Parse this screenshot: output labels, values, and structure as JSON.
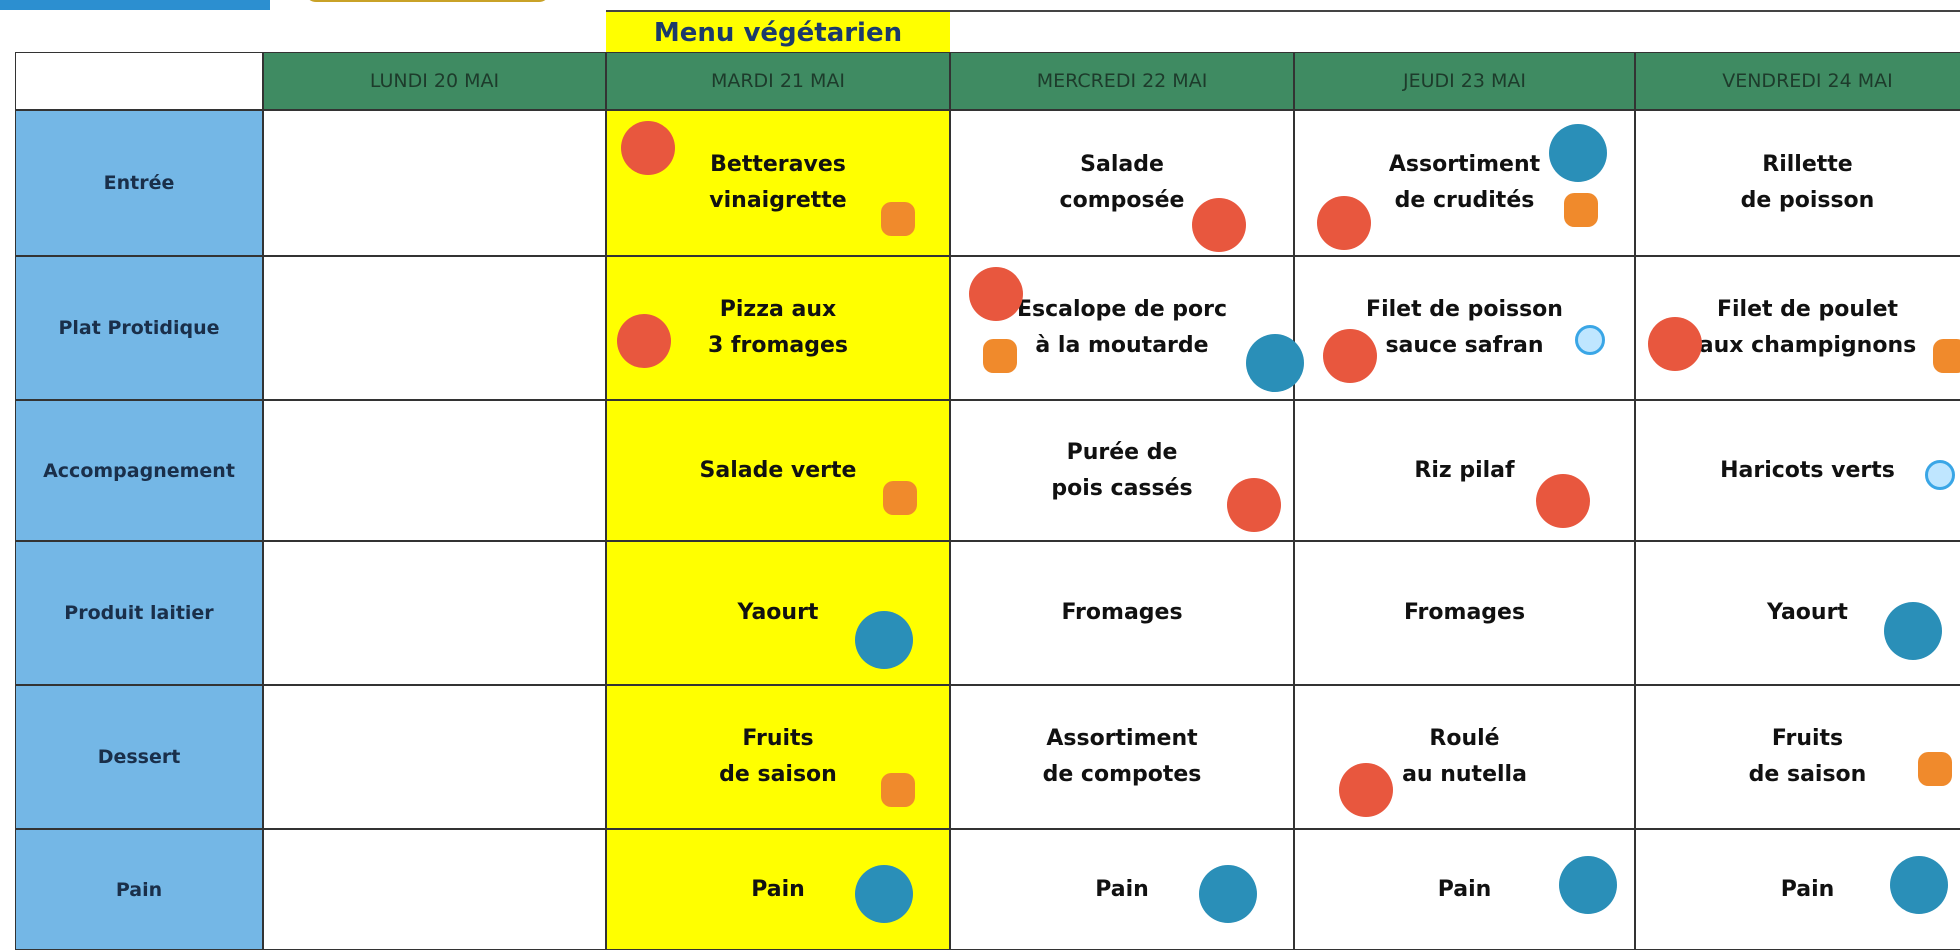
{
  "note": "Menu végétarien",
  "days": [
    "LUNDI 20 MAI",
    "MARDI 21 MAI",
    "MERCREDI 22 MAI",
    "JEUDI  23 MAI",
    "VENDREDI 24 MAI"
  ],
  "rows": [
    {
      "label": "Entrée",
      "cells": [
        [],
        [
          "Betteraves",
          "vinaigrette"
        ],
        [
          "Salade",
          "composée"
        ],
        [
          "Assortiment",
          "de crudités"
        ],
        [
          "Rillette",
          "de poisson"
        ]
      ]
    },
    {
      "label": "Plat Protidique",
      "cells": [
        [],
        [
          "Pizza aux",
          "3 fromages"
        ],
        [
          "Escalope de porc",
          "à la moutarde"
        ],
        [
          "Filet de poisson",
          "sauce safran"
        ],
        [
          "Filet de poulet",
          "aux champignons"
        ]
      ]
    },
    {
      "label": "Accompagnement",
      "cells": [
        [],
        [
          "Salade verte"
        ],
        [
          "Purée de",
          "pois cassés"
        ],
        [
          "Riz pilaf"
        ],
        [
          "Haricots verts"
        ]
      ]
    },
    {
      "label": "Produit laitier",
      "cells": [
        [],
        [
          "Yaourt"
        ],
        [
          "Fromages"
        ],
        [
          "Fromages"
        ],
        [
          "Yaourt"
        ]
      ]
    },
    {
      "label": "Dessert",
      "cells": [
        [],
        [
          "Fruits",
          "de saison"
        ],
        [
          "Assortiment",
          "de compotes"
        ],
        [
          "Roulé",
          "au nutella"
        ],
        [
          "Fruits",
          "de saison"
        ]
      ]
    },
    {
      "label": "Pain",
      "cells": [
        [],
        [
          "Pain"
        ],
        [
          "Pain"
        ],
        [
          "Pain"
        ],
        [
          "Pain"
        ]
      ]
    }
  ]
}
